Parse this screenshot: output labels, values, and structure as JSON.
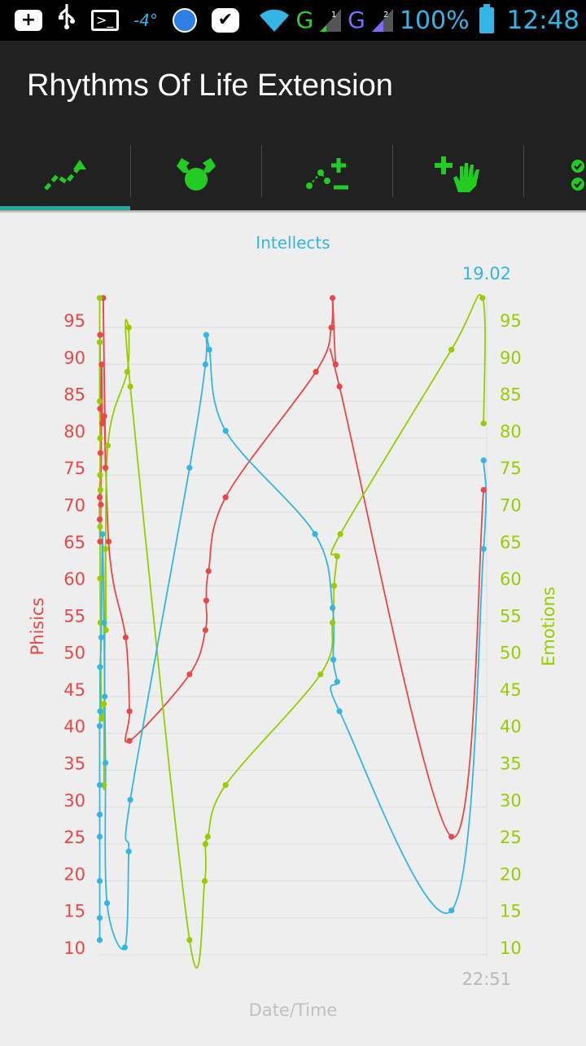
{
  "status_bar": {
    "icons": [
      "add-box-icon",
      "usb-icon",
      "terminal-icon",
      "temperature-icon",
      "globe-icon",
      "check-icon",
      "wifi-icon",
      "signal-icon",
      "signal-icon",
      "battery-icon"
    ],
    "temperature": "-4°",
    "net1": "G",
    "net2": "G",
    "sim1": "1",
    "sim2": "2",
    "battery": "100%",
    "time": "12:48"
  },
  "app": {
    "title": "Rhythms Of Life Extension"
  },
  "tabs": [
    {
      "icon": "trend-chart-icon",
      "selected": true
    },
    {
      "icon": "person-arms-icon",
      "selected": false
    },
    {
      "icon": "scatter-add-remove-icon",
      "selected": false
    },
    {
      "icon": "plus-hand-icon",
      "selected": false
    },
    {
      "icon": "check-list-icon",
      "selected": false
    }
  ],
  "colors": {
    "physics": "#e84848",
    "emotions": "#99cc00",
    "intellects": "#33b5e5",
    "accent": "#22cc22",
    "indicator": "#26a69a"
  },
  "chart_data": {
    "type": "line",
    "title": "Intellects",
    "top_value": "19.02",
    "last_x_label": "22:51",
    "xlabel": "Date/Time",
    "ylabel_left": "Phisics",
    "ylabel_right": "Emotions",
    "ylim": [
      9,
      99
    ],
    "y_ticks": [
      95,
      90,
      85,
      80,
      75,
      70,
      65,
      60,
      55,
      50,
      45,
      40,
      35,
      30,
      25,
      20,
      15,
      10
    ],
    "x_range": [
      0,
      100
    ],
    "grid": true,
    "series": [
      {
        "name": "Phisics",
        "color": "#e84848",
        "points": [
          [
            0.2,
            93
          ],
          [
            0.2,
            83
          ],
          [
            0.3,
            77
          ],
          [
            0.1,
            71
          ],
          [
            0.1,
            68
          ],
          [
            0.2,
            65
          ],
          [
            0.4,
            70
          ],
          [
            0.6,
            89
          ],
          [
            0.8,
            81
          ],
          [
            1.3,
            82
          ],
          [
            1.6,
            75
          ],
          [
            1.0,
            98
          ],
          [
            2.4,
            65
          ],
          [
            6.8,
            52
          ],
          [
            7.8,
            42
          ],
          [
            7.8,
            38
          ],
          [
            23.3,
            47
          ],
          [
            27.4,
            53
          ],
          [
            27.6,
            57
          ],
          [
            28.2,
            61
          ],
          [
            32.6,
            71
          ],
          [
            55.9,
            88
          ],
          [
            59.9,
            94
          ],
          [
            60.2,
            98
          ],
          [
            61.0,
            89
          ],
          [
            62.0,
            86
          ],
          [
            90.9,
            25
          ],
          [
            99.2,
            72
          ]
        ]
      },
      {
        "name": "Emotions",
        "color": "#99cc00",
        "points": [
          [
            0.1,
            98
          ],
          [
            0.1,
            92
          ],
          [
            0.1,
            84
          ],
          [
            0.2,
            79
          ],
          [
            0.2,
            74
          ],
          [
            0.3,
            72
          ],
          [
            0.2,
            67
          ],
          [
            0.2,
            60
          ],
          [
            0.3,
            54
          ],
          [
            0.6,
            41
          ],
          [
            1.2,
            43
          ],
          [
            1.2,
            32
          ],
          [
            1.6,
            64
          ],
          [
            1.7,
            53
          ],
          [
            2.2,
            78
          ],
          [
            7.2,
            88
          ],
          [
            7.6,
            94
          ],
          [
            8.0,
            86
          ],
          [
            23.3,
            11
          ],
          [
            27.2,
            19
          ],
          [
            27.4,
            24
          ],
          [
            28.0,
            25
          ],
          [
            32.6,
            32
          ],
          [
            57.1,
            47
          ],
          [
            60.2,
            54
          ],
          [
            60.6,
            59
          ],
          [
            61.4,
            63
          ],
          [
            62.2,
            66
          ],
          [
            90.9,
            91
          ],
          [
            98.9,
            98
          ],
          [
            99.2,
            81
          ]
        ]
      },
      {
        "name": "Intellects",
        "color": "#33b5e5",
        "points": [
          [
            0.1,
            11
          ],
          [
            0.1,
            14
          ],
          [
            0.1,
            19
          ],
          [
            0.1,
            25
          ],
          [
            0.1,
            28
          ],
          [
            0.1,
            32
          ],
          [
            0.1,
            40
          ],
          [
            0.2,
            42
          ],
          [
            0.2,
            48
          ],
          [
            0.5,
            52
          ],
          [
            0.8,
            66
          ],
          [
            1.2,
            54
          ],
          [
            1.4,
            44
          ],
          [
            1.6,
            35
          ],
          [
            2.0,
            16
          ],
          [
            6.6,
            10
          ],
          [
            7.6,
            23
          ],
          [
            8.0,
            30
          ],
          [
            23.3,
            75
          ],
          [
            27.4,
            89
          ],
          [
            27.6,
            93
          ],
          [
            28.4,
            91
          ],
          [
            32.6,
            80
          ],
          [
            55.7,
            66
          ],
          [
            60.2,
            56
          ],
          [
            60.4,
            49
          ],
          [
            61.4,
            46
          ],
          [
            62.0,
            42
          ],
          [
            90.9,
            15
          ],
          [
            99.2,
            64
          ],
          [
            99.2,
            76
          ]
        ]
      }
    ]
  }
}
